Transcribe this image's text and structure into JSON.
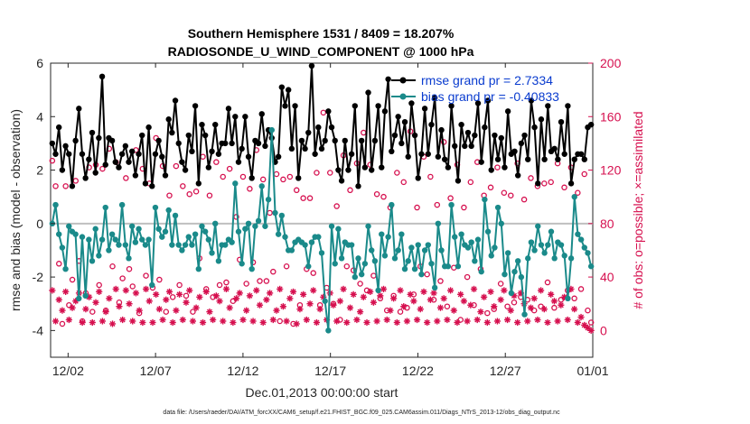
{
  "chart_data": {
    "type": "line",
    "title": [
      "Southern Hemisphere 1531 / 8409 = 18.207%",
      "RADIOSONDE_U_WIND_COMPONENT @ 1000 hPa"
    ],
    "xlabel": "Dec.01,2013 00:00:00 start",
    "ylabel_left": "rmse and bias (model - observation)",
    "ylabel_right": "# of obs: o=possible; ×=assimilated",
    "xlim": [
      0,
      31
    ],
    "ylim_left": [
      -5,
      6
    ],
    "ylim_right": [
      -20,
      200
    ],
    "x_ticks": [
      {
        "value": 1,
        "label": "12/02"
      },
      {
        "value": 6,
        "label": "12/07"
      },
      {
        "value": 11,
        "label": "12/12"
      },
      {
        "value": 16,
        "label": "12/17"
      },
      {
        "value": 21,
        "label": "12/22"
      },
      {
        "value": 26,
        "label": "12/27"
      },
      {
        "value": 31,
        "label": "01/01"
      }
    ],
    "y_ticks_left": [
      "-4",
      "-2",
      "0",
      "2",
      "4",
      "6"
    ],
    "y_tick_values_left": [
      -4,
      -2,
      0,
      2,
      4,
      6
    ],
    "y_ticks_right": [
      "0",
      "40",
      "80",
      "120",
      "160",
      "200"
    ],
    "y_tick_values_right": [
      0,
      40,
      80,
      120,
      160,
      200
    ],
    "zero_line": 0,
    "legend": [
      {
        "label": "rmse grand pr = 2.7334",
        "color": "#000000"
      },
      {
        "label": "bias grand pr = -0.40833",
        "color": "#1a8a8a"
      }
    ],
    "colors": {
      "rmse": "#000000",
      "bias": "#1a8a8a",
      "obs": "#d6104f",
      "zero": "#c0c0c0"
    },
    "series": [
      {
        "name": "rmse",
        "axis": "left",
        "values": [
          3.0,
          2.6,
          3.6,
          2.0,
          2.9,
          2.6,
          1.4,
          3.1,
          4.3,
          2.6,
          1.7,
          2.4,
          3.4,
          1.9,
          3.2,
          5.5,
          2.2,
          3.2,
          3.1,
          2.3,
          2.1,
          2.6,
          2.9,
          2.3,
          2.7,
          1.8,
          2.6,
          3.3,
          1.5,
          3.6,
          1.4,
          2.6,
          3.1,
          2.5,
          1.8,
          3.9,
          3.4,
          4.6,
          3.0,
          2.3,
          2.0,
          3.3,
          2.7,
          4.4,
          1.5,
          3.7,
          3.3,
          2.1,
          2.7,
          3.7,
          2.6,
          3.0,
          3.0,
          4.3,
          3.0,
          4.0,
          2.3,
          2.8,
          4.0,
          2.5,
          1.7,
          3.1,
          3.0,
          4.1,
          2.9,
          3.5,
          3.2,
          2.3,
          2.5,
          5.1,
          4.4,
          5.0,
          2.8,
          4.4,
          1.7,
          3.1,
          2.8,
          3.4,
          5.9,
          2.6,
          3.6,
          2.8,
          3.1,
          4.2,
          3.6,
          3.1,
          2.0,
          1.6,
          3.1,
          2.0,
          2.6,
          4.4,
          1.4,
          3.1,
          2.1,
          4.9,
          2.0,
          3.1,
          4.4,
          2.1,
          4.2,
          5.4,
          2.7,
          3.3,
          4.0,
          3.0,
          3.8,
          2.5,
          4.5,
          3.3,
          1.7,
          2.6,
          4.3,
          2.6,
          3.7,
          4.7,
          2.5,
          3.5,
          2.4,
          2.1,
          4.4,
          2.9,
          1.6,
          3.7,
          2.9,
          3.4,
          2.9,
          3.3,
          4.5,
          2.3,
          3.6,
          4.6,
          2.0,
          3.3,
          2.4,
          3.2,
          2.1,
          4.2,
          2.6,
          2.7,
          1.8,
          3.0,
          3.3,
          2.4,
          4.6,
          3.6,
          1.5,
          3.9,
          2.4,
          4.4,
          2.7,
          2.8,
          2.4,
          3.8,
          2.6,
          4.4,
          1.5,
          2.4,
          2.6,
          2.6,
          2.4,
          3.6,
          3.7
        ]
      },
      {
        "name": "bias",
        "axis": "left",
        "values": [
          0.0,
          0.7,
          -0.4,
          -0.9,
          -1.7,
          -0.1,
          -0.3,
          -0.4,
          -2.8,
          -0.5,
          -2.7,
          -0.6,
          -1.4,
          -0.2,
          -1.2,
          -0.6,
          0.6,
          -1.0,
          -0.4,
          -0.6,
          -0.8,
          0.7,
          -0.8,
          -1.3,
          -0.1,
          -0.7,
          -0.2,
          -0.6,
          -0.8,
          -0.6,
          -2.3,
          0.6,
          -0.2,
          -0.5,
          -0.3,
          0.5,
          -0.8,
          0.3,
          -0.8,
          -1.0,
          -0.8,
          -0.5,
          -0.8,
          -0.4,
          -1.7,
          -0.1,
          -0.3,
          -0.6,
          -1.1,
          0.0,
          -1.4,
          -0.8,
          -0.8,
          -0.6,
          -0.7,
          1.5,
          -0.3,
          -1.5,
          -0.2,
          0.0,
          -1.7,
          -0.1,
          0.1,
          1.4,
          -0.1,
          0.9,
          3.5,
          0.4,
          -0.4,
          0.3,
          -0.5,
          -1.0,
          -1.0,
          -0.7,
          -0.6,
          -0.7,
          -0.8,
          -1.6,
          -0.7,
          -0.5,
          -0.5,
          -1.1,
          -2.9,
          -4.0,
          -0.1,
          -1.5,
          -0.2,
          -1.3,
          -0.7,
          -0.8,
          -0.8,
          -2.0,
          -1.3,
          -1.9,
          -1.5,
          -0.1,
          -1.0,
          -1.4,
          -2.5,
          -0.4,
          -1.2,
          -0.5,
          0.7,
          -1.3,
          -1.0,
          -0.4,
          -1.7,
          -1.4,
          -0.9,
          -1.7,
          -0.8,
          -1.9,
          -1.0,
          -0.8,
          -1.5,
          -2.4,
          0.0,
          -1.0,
          -1.6,
          -1.6,
          0.7,
          -0.5,
          -1.6,
          -0.4,
          -0.8,
          -0.9,
          -0.7,
          -1.4,
          -0.6,
          -1.8,
          0.9,
          -0.3,
          -1.2,
          -0.9,
          0.6,
          0.0,
          -1.9,
          -1.1,
          -2.6,
          -1.8,
          -1.4,
          -2.0,
          -3.4,
          -1.3,
          -0.7,
          -1.0,
          -0.1,
          -0.8,
          -1.1,
          -0.8,
          -0.3,
          -1.3,
          -0.7,
          -0.8,
          -1.2,
          -2.8,
          -1.3,
          1.0,
          -0.4,
          -0.6,
          -0.9,
          -1.1,
          -1.6
        ]
      },
      {
        "name": "obs_possible",
        "axis": "right",
        "marker": "o",
        "values": [
          127,
          108,
          50,
          5,
          108,
          19,
          38,
          112,
          52,
          7,
          28,
          122,
          14,
          124,
          34,
          121,
          15,
          136,
          48,
          126,
          21,
          39,
          114,
          46,
          33,
          135,
          13,
          121,
          41,
          110,
          32,
          144,
          38,
          123,
          14,
          101,
          25,
          123,
          34,
          108,
          26,
          102,
          14,
          104,
          54,
          130,
          31,
          101,
          25,
          126,
          34,
          115,
          36,
          121,
          22,
          85,
          53,
          115,
          35,
          106,
          51,
          135,
          37,
          113,
          37,
          88,
          44,
          117,
          7,
          113,
          48,
          115,
          5,
          105,
          19,
          99,
          46,
          99,
          43,
          118,
          19,
          163,
          32,
          118,
          20,
          93,
          8,
          131,
          48,
          105,
          45,
          125,
          35,
          148,
          30,
          124,
          41,
          102,
          24,
          100,
          15,
          92,
          26,
          118,
          14,
          111,
          17,
          149,
          27,
          92,
          48,
          130,
          42,
          115,
          23,
          94,
          37,
          141,
          18,
          99,
          47,
          124,
          8,
          92,
          40,
          111,
          19,
          126,
          46,
          101,
          13,
          107,
          16,
          122,
          35,
          103,
          18,
          101,
          21,
          125,
          25,
          98,
          23,
          114,
          15,
          108,
          18,
          110,
          36,
          111,
          17,
          125,
          23,
          107,
          30,
          122,
          24,
          103,
          31,
          117,
          15,
          6
        ]
      },
      {
        "name": "obs_assimilated",
        "axis": "right",
        "marker": "*",
        "values": [
          30,
          7,
          23,
          15,
          29,
          8,
          17,
          22,
          28,
          6,
          16,
          25,
          6,
          21,
          29,
          7,
          14,
          24,
          5,
          31,
          18,
          8,
          30,
          20,
          7,
          28,
          15,
          6,
          31,
          22,
          6,
          27,
          16,
          8,
          23,
          29,
          6,
          15,
          27,
          8,
          21,
          30,
          7,
          17,
          25,
          6,
          29,
          14,
          8,
          26,
          22,
          7,
          31,
          17,
          6,
          24,
          28,
          8,
          15,
          26,
          7,
          30,
          19,
          6,
          23,
          28,
          8,
          15,
          31,
          18,
          7,
          24,
          29,
          5,
          16,
          27,
          8,
          20,
          30,
          6,
          16,
          25,
          8,
          28,
          19,
          7,
          22,
          31,
          6,
          17,
          27,
          8,
          14,
          25,
          6,
          29,
          21,
          7,
          26,
          31,
          8,
          15,
          24,
          6,
          30,
          18,
          7,
          27,
          22,
          8,
          16,
          29,
          6,
          23,
          28,
          7,
          17,
          24,
          8,
          30,
          15,
          6,
          27,
          22,
          7,
          19,
          31,
          8,
          14,
          25,
          6,
          29,
          18,
          7,
          23,
          30,
          8,
          15,
          26,
          6,
          28,
          20,
          7,
          17,
          24,
          8,
          30,
          16,
          6,
          27,
          22,
          7,
          19,
          25,
          8,
          31,
          16,
          6,
          10,
          4,
          2,
          0
        ]
      }
    ]
  },
  "footer": "data file: /Users/raeder/DAI/ATM_forcXX/CAM6_setup/f.e21.FHIST_BGC.f09_025.CAM6assim.011/Diags_NTrS_2013-12/obs_diag_output.nc"
}
